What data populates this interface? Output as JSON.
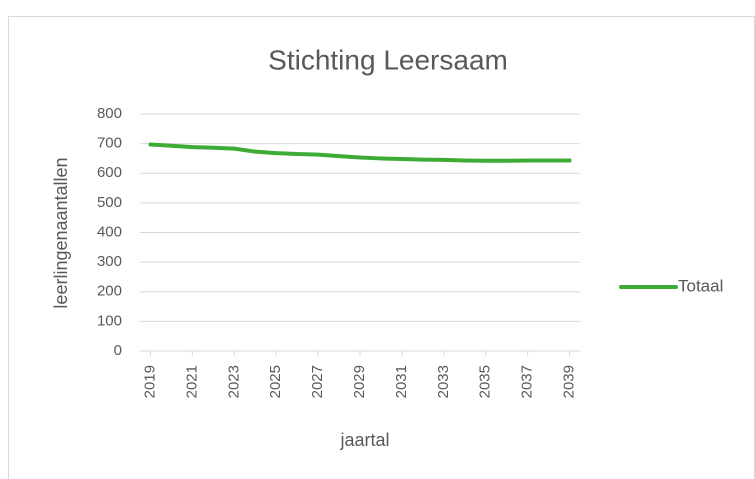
{
  "chart_data": {
    "type": "line",
    "title": "Stichting Leersaam",
    "x_label": "jaartal",
    "y_label": "leerlingenaantallen",
    "x": [
      2019,
      2020,
      2021,
      2022,
      2023,
      2024,
      2025,
      2026,
      2027,
      2028,
      2029,
      2030,
      2031,
      2032,
      2033,
      2034,
      2035,
      2036,
      2037,
      2038,
      2039
    ],
    "series": [
      {
        "name": "Totaal",
        "color": "#3dab35",
        "values": [
          697,
          693,
          688,
          686,
          683,
          673,
          668,
          665,
          663,
          658,
          653,
          650,
          648,
          646,
          645,
          643,
          642,
          642,
          643,
          643,
          643
        ]
      }
    ],
    "xlim": [
      2018.5,
      2039.5
    ],
    "xticks": [
      2019,
      2021,
      2023,
      2025,
      2027,
      2029,
      2031,
      2033,
      2035,
      2037,
      2039
    ],
    "ylim": [
      0,
      800
    ],
    "yticks": [
      0,
      100,
      200,
      300,
      400,
      500,
      600,
      700,
      800
    ],
    "grid": true,
    "legend": "right"
  }
}
